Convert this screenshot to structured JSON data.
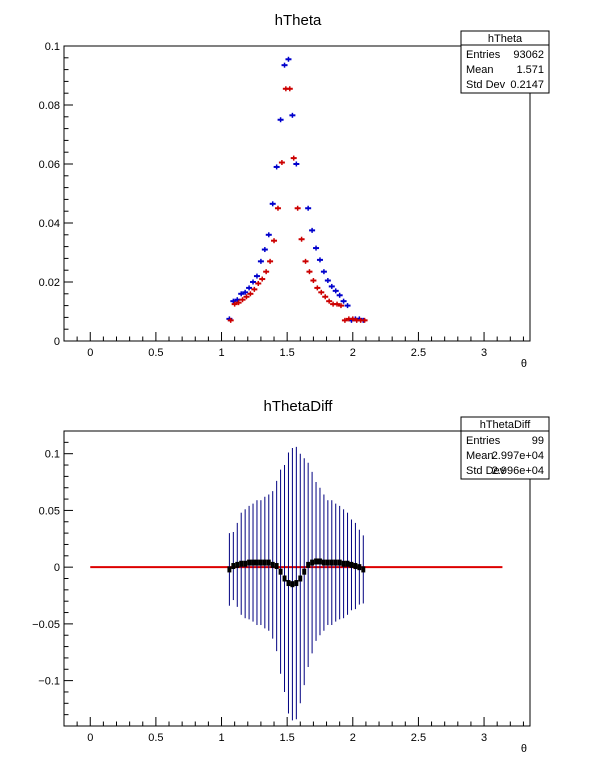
{
  "chart_data": [
    {
      "type": "scatter",
      "title": "hTheta",
      "xlabel": "θ",
      "ylabel": "",
      "xlim": [
        -0.2,
        3.35
      ],
      "ylim": [
        0,
        0.1
      ],
      "xticks": [
        0,
        0.5,
        1,
        1.5,
        2,
        2.5,
        3
      ],
      "xtick_labels": [
        "0",
        "0.5",
        "1",
        "1.5",
        "2",
        "2.5",
        "3"
      ],
      "yticks": [
        0,
        0.02,
        0.04,
        0.06,
        0.08,
        0.1
      ],
      "ytick_labels": [
        "0",
        "0.02",
        "0.04",
        "0.06",
        "0.08",
        "0.1"
      ],
      "grid": false,
      "stats": {
        "name": "hTheta",
        "rows": [
          {
            "label": "Entries",
            "value": "93062"
          },
          {
            "label": "Mean",
            "value": "1.571"
          },
          {
            "label": "Std Dev",
            "value": "0.2147"
          }
        ]
      },
      "series": [
        {
          "color": "#0000cc",
          "x": [
            1.06,
            1.09,
            1.12,
            1.15,
            1.18,
            1.21,
            1.24,
            1.27,
            1.3,
            1.33,
            1.36,
            1.39,
            1.42,
            1.45,
            1.48,
            1.51,
            1.54,
            1.57,
            1.66,
            1.69,
            1.72,
            1.75,
            1.78,
            1.81,
            1.84,
            1.87,
            1.9,
            1.93,
            1.96,
            1.99,
            2.02,
            2.05,
            2.08
          ],
          "y": [
            0.0075,
            0.0135,
            0.014,
            0.016,
            0.0165,
            0.018,
            0.02,
            0.022,
            0.027,
            0.031,
            0.036,
            0.0465,
            0.059,
            0.075,
            0.0935,
            0.0955,
            0.0765,
            0.06,
            0.045,
            0.0375,
            0.0315,
            0.0275,
            0.0235,
            0.0205,
            0.0185,
            0.017,
            0.0155,
            0.0135,
            0.012,
            0.007,
            0.0075,
            0.0075,
            0.007
          ]
        },
        {
          "color": "#cc0000",
          "x": [
            1.07,
            1.1,
            1.13,
            1.16,
            1.19,
            1.22,
            1.25,
            1.28,
            1.31,
            1.34,
            1.37,
            1.4,
            1.43,
            1.46,
            1.49,
            1.52,
            1.55,
            1.58,
            1.61,
            1.64,
            1.67,
            1.7,
            1.73,
            1.76,
            1.79,
            1.82,
            1.85,
            1.88,
            1.91,
            1.94,
            1.97,
            2.0,
            2.03,
            2.06,
            2.09
          ],
          "y": [
            0.007,
            0.0125,
            0.013,
            0.014,
            0.015,
            0.016,
            0.0175,
            0.0195,
            0.021,
            0.0235,
            0.027,
            0.034,
            0.045,
            0.0605,
            0.0855,
            0.0855,
            0.062,
            0.045,
            0.0345,
            0.027,
            0.0235,
            0.0205,
            0.018,
            0.0165,
            0.015,
            0.0135,
            0.0125,
            0.0125,
            0.012,
            0.007,
            0.0075,
            0.0075,
            0.007,
            0.007,
            0.007
          ]
        }
      ]
    },
    {
      "type": "scatter",
      "title": "hThetaDiff",
      "xlabel": "θ",
      "ylabel": "",
      "xlim": [
        -0.2,
        3.35
      ],
      "ylim": [
        -0.14,
        0.12
      ],
      "xticks": [
        0,
        0.5,
        1,
        1.5,
        2,
        2.5,
        3
      ],
      "xtick_labels": [
        "0",
        "0.5",
        "1",
        "1.5",
        "2",
        "2.5",
        "3"
      ],
      "yticks": [
        -0.1,
        -0.05,
        0,
        0.05,
        0.1
      ],
      "ytick_labels": [
        "−0.1",
        "−0.05",
        "0",
        "0.05",
        "0.1"
      ],
      "grid": false,
      "stats": {
        "name": "hThetaDiff",
        "rows": [
          {
            "label": "Entries",
            "value": "99"
          },
          {
            "label": "Mean",
            "value": "2.997e+04"
          },
          {
            "label": "Std Dev",
            "value": "2.996e+04"
          }
        ]
      },
      "reference_line": {
        "y": 0,
        "x_from": 0,
        "x_to": 3.14,
        "color": "#dd0000"
      },
      "series": [
        {
          "color": "#000000",
          "error_color": "#000080",
          "x": [
            1.06,
            1.09,
            1.12,
            1.15,
            1.18,
            1.21,
            1.24,
            1.27,
            1.3,
            1.33,
            1.36,
            1.39,
            1.42,
            1.45,
            1.48,
            1.51,
            1.54,
            1.57,
            1.6,
            1.63,
            1.66,
            1.69,
            1.72,
            1.75,
            1.78,
            1.81,
            1.84,
            1.87,
            1.9,
            1.93,
            1.96,
            1.99,
            2.02,
            2.05,
            2.08
          ],
          "y": [
            -0.002,
            0.001,
            0.002,
            0.003,
            0.003,
            0.004,
            0.004,
            0.004,
            0.004,
            0.004,
            0.004,
            0.002,
            0.001,
            -0.004,
            -0.01,
            -0.014,
            -0.015,
            -0.014,
            -0.01,
            -0.004,
            0.002,
            0.004,
            0.005,
            0.005,
            0.004,
            0.004,
            0.004,
            0.004,
            0.004,
            0.003,
            0.003,
            0.002,
            0.001,
            0.0,
            -0.002
          ],
          "yerr": [
            0.032,
            0.03,
            0.037,
            0.045,
            0.048,
            0.05,
            0.052,
            0.055,
            0.055,
            0.058,
            0.06,
            0.065,
            0.075,
            0.09,
            0.1,
            0.115,
            0.12,
            0.12,
            0.11,
            0.1,
            0.09,
            0.08,
            0.07,
            0.065,
            0.06,
            0.055,
            0.055,
            0.052,
            0.05,
            0.048,
            0.045,
            0.04,
            0.038,
            0.033,
            0.03
          ]
        }
      ]
    }
  ]
}
